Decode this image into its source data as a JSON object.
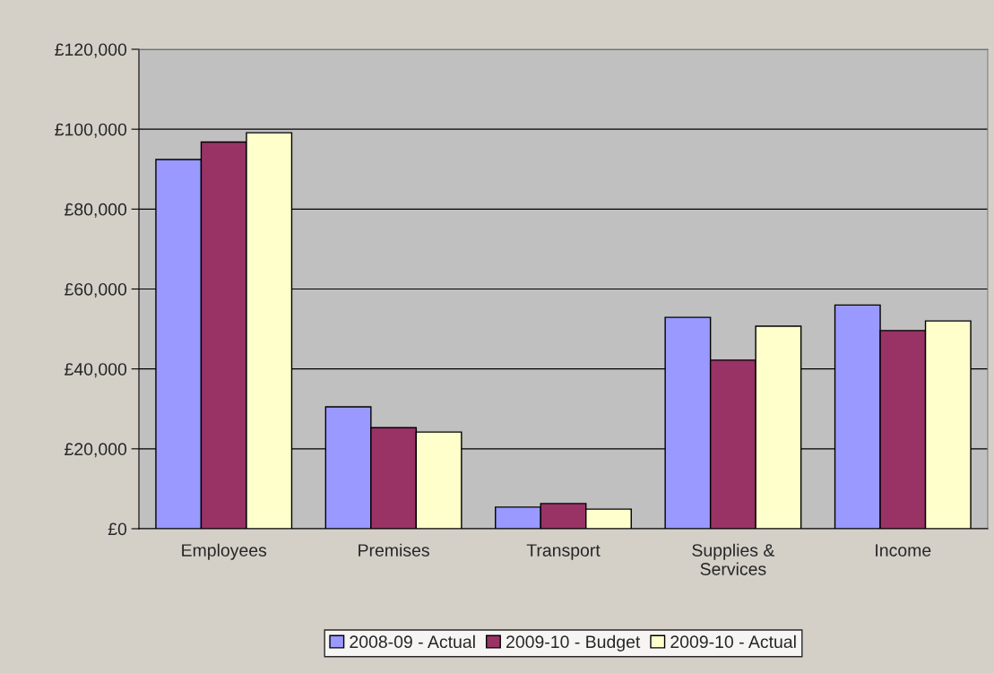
{
  "chart_data": {
    "type": "bar",
    "categories": [
      "Employees",
      "Premises",
      "Transport",
      "Supplies &\nServices",
      "Income"
    ],
    "series": [
      {
        "name": "2008-09 - Actual",
        "color": "#9999ff",
        "values": [
          92400,
          30500,
          5400,
          52900,
          56000
        ]
      },
      {
        "name": "2009-10 - Budget",
        "color": "#993366",
        "values": [
          96800,
          25300,
          6300,
          42200,
          49600
        ]
      },
      {
        "name": "2009-10 - Actual",
        "color": "#ffffcc",
        "values": [
          99100,
          24200,
          4900,
          50700,
          52000
        ]
      }
    ],
    "ylim": [
      0,
      120000
    ],
    "yticks": [
      {
        "value": 0,
        "label": "£0"
      },
      {
        "value": 20000,
        "label": "£20,000"
      },
      {
        "value": 40000,
        "label": "£40,000"
      },
      {
        "value": 60000,
        "label": "£60,000"
      },
      {
        "value": 80000,
        "label": "£80,000"
      },
      {
        "value": 100000,
        "label": "£100,000"
      },
      {
        "value": 120000,
        "label": "£120,000"
      }
    ],
    "grid": "y",
    "legend": "bottom"
  }
}
